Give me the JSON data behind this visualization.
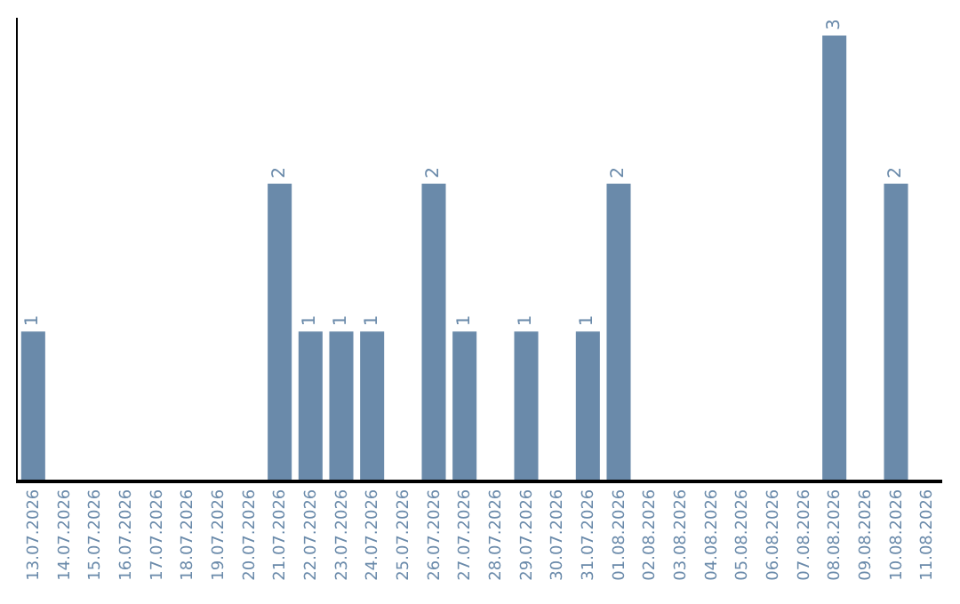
{
  "chart_data": {
    "type": "bar",
    "categories": [
      "13.07.2026",
      "14.07.2026",
      "15.07.2026",
      "16.07.2026",
      "17.07.2026",
      "18.07.2026",
      "19.07.2026",
      "20.07.2026",
      "21.07.2026",
      "22.07.2026",
      "23.07.2026",
      "24.07.2026",
      "25.07.2026",
      "26.07.2026",
      "27.07.2026",
      "28.07.2026",
      "29.07.2026",
      "30.07.2026",
      "31.07.2026",
      "01.08.2026",
      "02.08.2026",
      "03.08.2026",
      "04.08.2026",
      "05.08.2026",
      "06.08.2026",
      "07.08.2026",
      "08.08.2026",
      "09.08.2026",
      "10.08.2026",
      "11.08.2026"
    ],
    "values": [
      1,
      0,
      0,
      0,
      0,
      0,
      0,
      0,
      2,
      1,
      1,
      1,
      0,
      2,
      1,
      0,
      1,
      0,
      1,
      2,
      0,
      0,
      0,
      0,
      0,
      0,
      3,
      0,
      2,
      0
    ],
    "value_labels": [
      "1",
      null,
      null,
      null,
      null,
      null,
      null,
      null,
      "2",
      "1",
      "1",
      "1",
      null,
      "2",
      "1",
      null,
      "1",
      null,
      "1",
      "2",
      null,
      null,
      null,
      null,
      null,
      null,
      "3",
      null,
      "2",
      null
    ],
    "color": "#6a8aaa",
    "tick_labels": "x",
    "legend": false
  }
}
